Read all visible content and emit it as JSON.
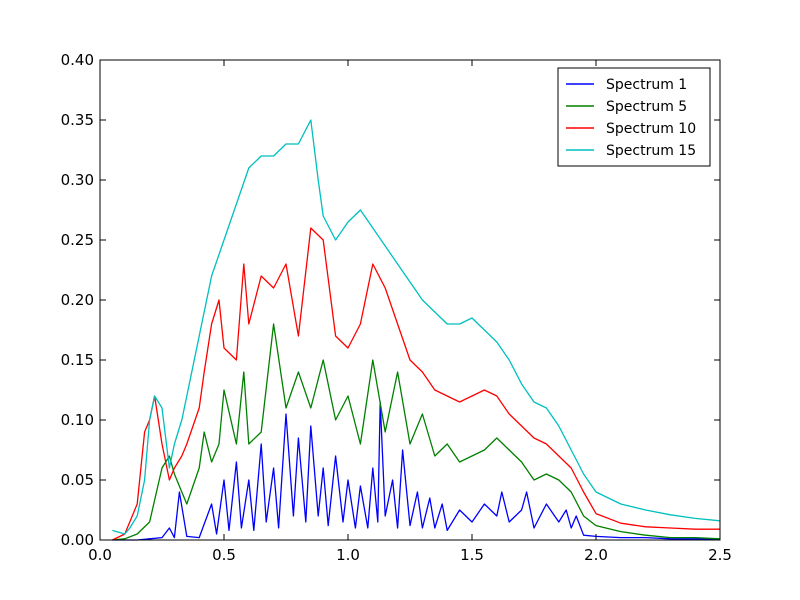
{
  "chart_data": {
    "type": "line",
    "title": "",
    "xlabel": "",
    "ylabel": "",
    "xlim": [
      0.0,
      2.5
    ],
    "ylim": [
      0.0,
      0.4
    ],
    "x_ticks": [
      "0.0",
      "0.5",
      "1.0",
      "1.5",
      "2.0",
      "2.5"
    ],
    "y_ticks": [
      "0.00",
      "0.05",
      "0.10",
      "0.15",
      "0.20",
      "0.25",
      "0.30",
      "0.35",
      "0.40"
    ],
    "grid": false,
    "legend_position": "top-right",
    "series": [
      {
        "name": "Spectrum 1",
        "color": "#0000ff",
        "x": [
          0.05,
          0.1,
          0.15,
          0.2,
          0.25,
          0.28,
          0.3,
          0.32,
          0.35,
          0.4,
          0.45,
          0.47,
          0.5,
          0.52,
          0.55,
          0.57,
          0.6,
          0.62,
          0.65,
          0.67,
          0.7,
          0.72,
          0.75,
          0.78,
          0.8,
          0.83,
          0.85,
          0.88,
          0.9,
          0.92,
          0.95,
          0.98,
          1.0,
          1.03,
          1.05,
          1.08,
          1.1,
          1.12,
          1.13,
          1.15,
          1.18,
          1.2,
          1.22,
          1.25,
          1.28,
          1.3,
          1.33,
          1.35,
          1.38,
          1.4,
          1.45,
          1.5,
          1.55,
          1.6,
          1.62,
          1.65,
          1.7,
          1.72,
          1.75,
          1.8,
          1.85,
          1.88,
          1.9,
          1.92,
          1.95,
          2.0,
          2.1,
          2.2,
          2.3,
          2.4,
          2.5
        ],
        "y": [
          0.0,
          0.0,
          0.0,
          0.001,
          0.002,
          0.01,
          0.002,
          0.04,
          0.003,
          0.002,
          0.03,
          0.005,
          0.05,
          0.008,
          0.065,
          0.01,
          0.05,
          0.008,
          0.08,
          0.015,
          0.06,
          0.01,
          0.105,
          0.02,
          0.085,
          0.015,
          0.095,
          0.02,
          0.06,
          0.012,
          0.07,
          0.015,
          0.05,
          0.01,
          0.045,
          0.01,
          0.06,
          0.015,
          0.115,
          0.02,
          0.05,
          0.01,
          0.075,
          0.012,
          0.04,
          0.01,
          0.035,
          0.01,
          0.03,
          0.008,
          0.025,
          0.015,
          0.03,
          0.02,
          0.04,
          0.015,
          0.025,
          0.04,
          0.01,
          0.03,
          0.015,
          0.025,
          0.01,
          0.02,
          0.004,
          0.003,
          0.002,
          0.002,
          0.001,
          0.001,
          0.001
        ]
      },
      {
        "name": "Spectrum 5",
        "color": "#008000",
        "x": [
          0.05,
          0.1,
          0.15,
          0.2,
          0.25,
          0.28,
          0.3,
          0.33,
          0.35,
          0.4,
          0.42,
          0.45,
          0.48,
          0.5,
          0.55,
          0.58,
          0.6,
          0.65,
          0.7,
          0.75,
          0.8,
          0.85,
          0.9,
          0.95,
          1.0,
          1.05,
          1.1,
          1.15,
          1.2,
          1.25,
          1.3,
          1.35,
          1.4,
          1.45,
          1.5,
          1.55,
          1.6,
          1.65,
          1.7,
          1.75,
          1.8,
          1.85,
          1.9,
          1.95,
          2.0,
          2.1,
          2.2,
          2.3,
          2.4,
          2.5
        ],
        "y": [
          0.0,
          0.001,
          0.005,
          0.015,
          0.06,
          0.07,
          0.055,
          0.04,
          0.03,
          0.06,
          0.09,
          0.065,
          0.08,
          0.125,
          0.08,
          0.14,
          0.08,
          0.09,
          0.18,
          0.11,
          0.14,
          0.11,
          0.15,
          0.1,
          0.12,
          0.08,
          0.15,
          0.09,
          0.14,
          0.08,
          0.105,
          0.07,
          0.08,
          0.065,
          0.07,
          0.075,
          0.085,
          0.075,
          0.065,
          0.05,
          0.055,
          0.05,
          0.04,
          0.02,
          0.012,
          0.007,
          0.004,
          0.002,
          0.002,
          0.001
        ]
      },
      {
        "name": "Spectrum 10",
        "color": "#ff0000",
        "x": [
          0.05,
          0.1,
          0.15,
          0.18,
          0.2,
          0.22,
          0.25,
          0.28,
          0.3,
          0.33,
          0.35,
          0.4,
          0.42,
          0.45,
          0.48,
          0.5,
          0.55,
          0.58,
          0.6,
          0.65,
          0.7,
          0.75,
          0.8,
          0.85,
          0.9,
          0.95,
          1.0,
          1.05,
          1.1,
          1.15,
          1.2,
          1.25,
          1.3,
          1.35,
          1.4,
          1.45,
          1.5,
          1.55,
          1.6,
          1.65,
          1.7,
          1.75,
          1.8,
          1.85,
          1.9,
          1.95,
          2.0,
          2.1,
          2.2,
          2.3,
          2.4,
          2.5
        ],
        "y": [
          0.0,
          0.005,
          0.03,
          0.09,
          0.1,
          0.12,
          0.08,
          0.05,
          0.06,
          0.07,
          0.08,
          0.11,
          0.14,
          0.18,
          0.2,
          0.16,
          0.15,
          0.23,
          0.18,
          0.22,
          0.21,
          0.23,
          0.17,
          0.26,
          0.25,
          0.17,
          0.16,
          0.18,
          0.23,
          0.21,
          0.18,
          0.15,
          0.14,
          0.125,
          0.12,
          0.115,
          0.12,
          0.125,
          0.12,
          0.105,
          0.095,
          0.085,
          0.08,
          0.07,
          0.06,
          0.04,
          0.022,
          0.014,
          0.011,
          0.01,
          0.009,
          0.009
        ]
      },
      {
        "name": "Spectrum 15",
        "color": "#00bfbf",
        "x": [
          0.05,
          0.1,
          0.12,
          0.15,
          0.18,
          0.2,
          0.22,
          0.25,
          0.28,
          0.3,
          0.33,
          0.35,
          0.4,
          0.45,
          0.5,
          0.55,
          0.6,
          0.65,
          0.7,
          0.75,
          0.8,
          0.85,
          0.88,
          0.9,
          0.95,
          1.0,
          1.05,
          1.1,
          1.15,
          1.2,
          1.25,
          1.3,
          1.35,
          1.4,
          1.45,
          1.5,
          1.55,
          1.6,
          1.65,
          1.7,
          1.75,
          1.8,
          1.85,
          1.9,
          1.95,
          2.0,
          2.1,
          2.2,
          2.3,
          2.4,
          2.5
        ],
        "y": [
          0.008,
          0.005,
          0.01,
          0.02,
          0.05,
          0.1,
          0.12,
          0.11,
          0.06,
          0.08,
          0.1,
          0.12,
          0.17,
          0.22,
          0.25,
          0.28,
          0.31,
          0.32,
          0.32,
          0.33,
          0.33,
          0.35,
          0.3,
          0.27,
          0.25,
          0.265,
          0.275,
          0.26,
          0.245,
          0.23,
          0.215,
          0.2,
          0.19,
          0.18,
          0.18,
          0.185,
          0.175,
          0.165,
          0.15,
          0.13,
          0.115,
          0.11,
          0.095,
          0.075,
          0.055,
          0.04,
          0.03,
          0.025,
          0.021,
          0.018,
          0.016
        ]
      }
    ]
  }
}
